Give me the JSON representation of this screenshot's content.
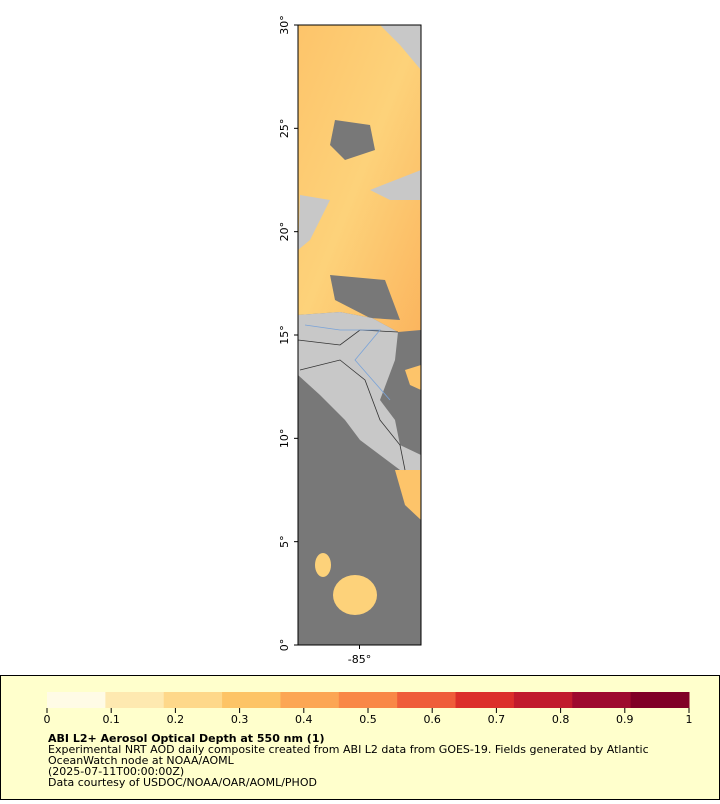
{
  "map": {
    "ylim": [
      0,
      30
    ],
    "yticks": [
      {
        "value": 0,
        "label": "0°"
      },
      {
        "value": 5,
        "label": "5°"
      },
      {
        "value": 10,
        "label": "10°"
      },
      {
        "value": 15,
        "label": "15°"
      },
      {
        "value": 20,
        "label": "20°"
      },
      {
        "value": 25,
        "label": "25°"
      },
      {
        "value": 30,
        "label": "30°"
      }
    ],
    "xlim": [
      -88,
      -82
    ],
    "xticks": [
      {
        "value": -85,
        "label": "-85°"
      }
    ]
  },
  "colorbar": {
    "lim": [
      0,
      1
    ],
    "ticks": [
      0,
      0.1,
      0.2,
      0.3,
      0.4,
      0.5,
      0.6,
      0.7,
      0.8,
      0.9,
      1
    ],
    "colors": [
      "#fffbe6",
      "#fee9b0",
      "#fed88a",
      "#fdc466",
      "#fca654",
      "#f98847",
      "#ef5d3a",
      "#dc2f2a",
      "#c11b2c",
      "#9e0a2e",
      "#800026"
    ]
  },
  "legend": {
    "title": "ABI L2+ Aerosol Optical Depth at 550 nm (1)",
    "lines": [
      "Experimental NRT AOD daily composite created from ABI L2 data from GOES-19. Fields generated by Atlantic",
      "OceanWatch node at NOAA/AOML",
      "(2025-07-11T00:00:00Z)",
      "Data courtesy of USDOC/NOAA/OAR/AOML/PHOD"
    ]
  }
}
